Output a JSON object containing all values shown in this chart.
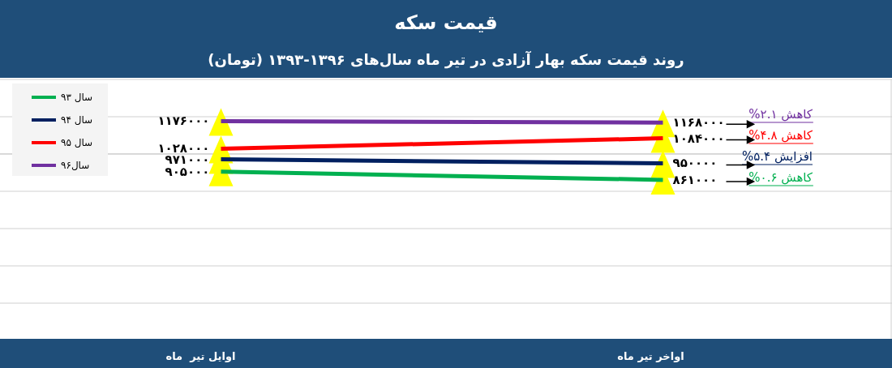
{
  "chart_data": {
    "type": "line",
    "title": "قیمت سکه",
    "subtitle": "روند قیمت سکه بهار آزادی در تیر ماه سال‌های ۱۳۹۶-۱۳۹۳ (تومان)",
    "categories": [
      "اوایل تیر  ماه",
      "اواخر تیر ماه"
    ],
    "series": [
      {
        "name": "سال ۹۳",
        "color": "#00b050",
        "values": [
          905000,
          861000
        ],
        "value_labels": [
          "۹۰۵۰۰۰",
          "۸۶۱۰۰۰"
        ]
      },
      {
        "name": "سال ۹۴",
        "color": "#002060",
        "values": [
          971000,
          950000
        ],
        "value_labels": [
          "۹۷۱۰۰۰",
          "۹۵۰۰۰۰"
        ]
      },
      {
        "name": "سال ۹۵",
        "color": "#ff0000",
        "values": [
          1028000,
          1084000
        ],
        "value_labels": [
          "۱۰۲۸۰۰۰",
          "۱۰۸۴۰۰۰"
        ]
      },
      {
        "name": "سال۹۶",
        "color": "#7030a0",
        "values": [
          1176000,
          1168000
        ],
        "value_labels": [
          "۱۱۷۶۰۰۰",
          "۱۱۶۸۰۰۰"
        ]
      }
    ],
    "tick_labels": "x",
    "ref_lines": [
      {
        "axis": "y",
        "value": 1000000,
        "color": "#d0d0d0"
      }
    ],
    "legend": "top left",
    "marker": "triangle",
    "annotations": [
      "کاهش ۲.۱%",
      "کاهش ۴.۸%",
      "افزایش ۵.۴%",
      "کاهش ۰.۶%"
    ]
  }
}
